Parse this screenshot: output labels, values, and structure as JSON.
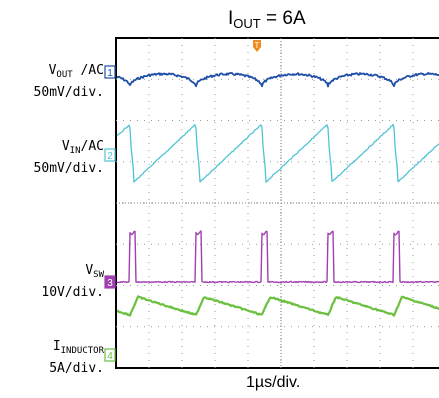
{
  "header": {
    "current_label_main": "I",
    "current_label_sub": "OUT",
    "current_label_value": " = 6A"
  },
  "channels": [
    {
      "id": "1",
      "name_main": "V",
      "name_sub": "OUT",
      "name_suffix": " /AC",
      "scale": "50mV/div.",
      "color": "#1f4fa8"
    },
    {
      "id": "2",
      "name_main": "V",
      "name_sub": "IN",
      "name_suffix": "/AC",
      "scale": "50mV/div.",
      "color": "#4fc3d4"
    },
    {
      "id": "3",
      "name_main": "V",
      "name_sub": "SW",
      "name_suffix": "",
      "scale": "10V/div.",
      "color": "#a040b0"
    },
    {
      "id": "4",
      "name_main": "I",
      "name_sub": "INDUCTOR",
      "name_suffix": "",
      "scale": "5A/div.",
      "color": "#6cc040"
    }
  ],
  "trigger_marker": "T",
  "trigger_color": "#f08a1c",
  "x_scale_label": "1µs/div.",
  "chart_data": {
    "type": "line",
    "title": "",
    "xlabel": "1µs/div.",
    "x_divisions": 10,
    "y_divisions": 8,
    "x_range_us": [
      0,
      10
    ],
    "switching_period_us": 2.0,
    "series": [
      {
        "name": "VOUT/AC",
        "waveform": "output ripple, cusp minima once per switching period",
        "ripple_divisions": 0.6
      },
      {
        "name": "VIN/AC",
        "waveform": "sawtooth: slow ramp up, sharp drop at switch turn-on",
        "ripple_divisions": 1.9
      },
      {
        "name": "VSW",
        "waveform": "pulse train",
        "pulse_width_us": 0.2,
        "pulse_height_divisions": 1.5
      },
      {
        "name": "IINDUCTOR",
        "waveform": "triangle: quick rise during on-time, slow fall",
        "ripple_divisions": 0.45
      }
    ]
  }
}
